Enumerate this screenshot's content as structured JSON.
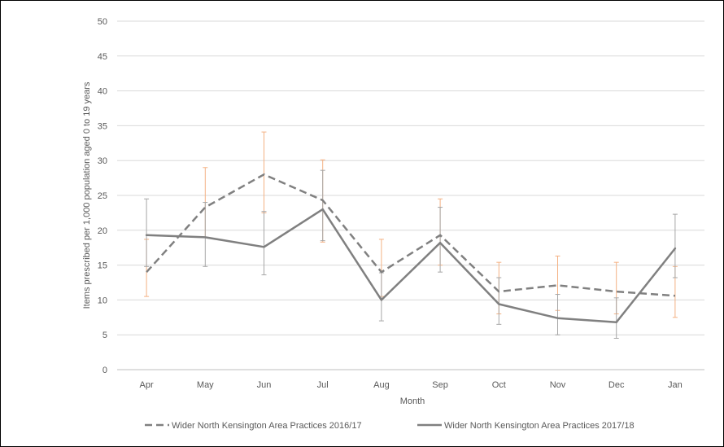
{
  "chart_data": {
    "type": "line",
    "title": "",
    "xlabel": "Month",
    "ylabel": "Items prescribed per 1,000 population aged 0 to 19 years",
    "ylim": [
      0,
      50
    ],
    "yticks": [
      0,
      5,
      10,
      15,
      20,
      25,
      30,
      35,
      40,
      45,
      50
    ],
    "categories": [
      "Apr",
      "May",
      "Jun",
      "Jul",
      "Aug",
      "Sep",
      "Oct",
      "Nov",
      "Dec",
      "Jan"
    ],
    "grid": "horizontal",
    "legend_position": "bottom",
    "series": [
      {
        "name": "Wider North Kensington Area Practices 2016/17",
        "style": "dashed",
        "color": "#808080",
        "error_color": "#f4b183",
        "values": [
          14.0,
          23.3,
          28.0,
          24.3,
          14.0,
          19.3,
          11.2,
          12.1,
          11.2,
          10.6
        ],
        "error_low": [
          10.5,
          19.0,
          22.5,
          18.3,
          10.5,
          15.0,
          8.0,
          8.5,
          8.0,
          7.5
        ],
        "error_high": [
          18.7,
          29.0,
          34.1,
          30.1,
          18.7,
          24.5,
          15.4,
          16.3,
          15.4,
          14.8
        ]
      },
      {
        "name": "Wider North Kensington Area Practices 2017/18",
        "style": "solid",
        "color": "#808080",
        "error_color": "#a6a6a6",
        "values": [
          19.3,
          19.0,
          17.6,
          23.0,
          10.0,
          18.2,
          9.4,
          7.4,
          6.8,
          17.4
        ],
        "error_low": [
          14.8,
          14.8,
          13.6,
          18.5,
          7.0,
          14.0,
          6.5,
          5.0,
          4.5,
          13.2
        ],
        "error_high": [
          24.5,
          24.0,
          22.7,
          28.6,
          13.9,
          23.3,
          13.2,
          10.8,
          10.3,
          22.3
        ]
      }
    ]
  }
}
